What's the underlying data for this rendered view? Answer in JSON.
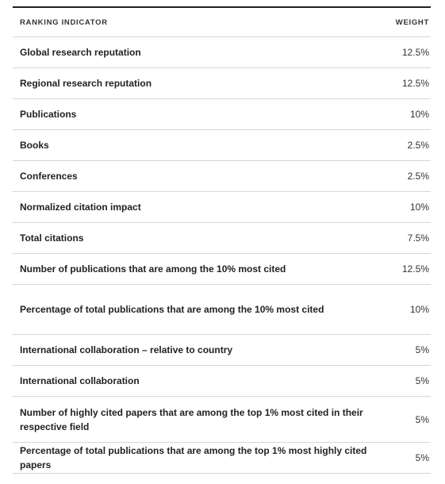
{
  "table": {
    "headers": {
      "indicator": "RANKING INDICATOR",
      "weight": "WEIGHT"
    },
    "rows": [
      {
        "indicator": "Global research reputation",
        "weight": "12.5%"
      },
      {
        "indicator": "Regional research reputation",
        "weight": "12.5%"
      },
      {
        "indicator": "Publications",
        "weight": "10%"
      },
      {
        "indicator": "Books",
        "weight": "2.5%"
      },
      {
        "indicator": "Conferences",
        "weight": "2.5%"
      },
      {
        "indicator": "Normalized citation impact",
        "weight": "10%"
      },
      {
        "indicator": "Total citations",
        "weight": "7.5%"
      },
      {
        "indicator": "Number of publications that are among the 10% most cited",
        "weight": "12.5%"
      },
      {
        "indicator": "Percentage of total publications that are among the 10% most cited",
        "weight": "10%"
      },
      {
        "indicator": "International collaboration – relative to country",
        "weight": "5%"
      },
      {
        "indicator": "International collaboration",
        "weight": "5%"
      },
      {
        "indicator": "Number of highly cited papers that are among the top 1% most cited in their respective field",
        "weight": "5%"
      },
      {
        "indicator": "Percentage of total publications that are among the top 1% most highly cited papers",
        "weight": "5%"
      }
    ]
  }
}
